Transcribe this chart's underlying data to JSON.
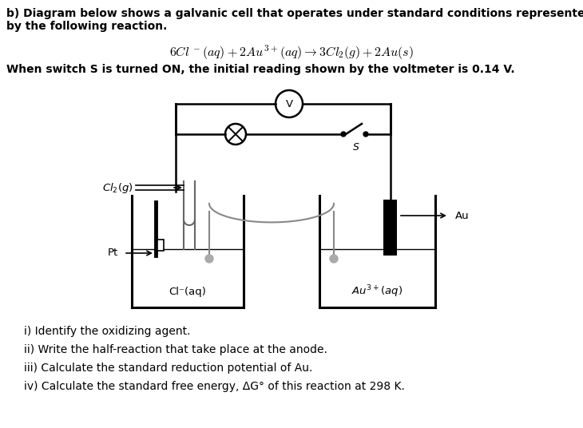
{
  "bg_color": "#ffffff",
  "text_color": "#000000",
  "title_line1": "b) Diagram below shows a galvanic cell that operates under standard conditions represented",
  "title_line2": "by the following reaction.",
  "switch_text": "When switch S is turned ON, the initial reading shown by the voltmeter is 0.14 V.",
  "q1": "i) Identify the oxidizing agent.",
  "q2": "ii) Write the half-reaction that take place at the anode.",
  "q3": "iii) Calculate the standard reduction potential of Au.",
  "q4": "iv) Calculate the standard free energy, ΔG° of this reaction at 298 K.",
  "cell_left_label": "Cl⁻(aq)",
  "cell_right_label": "Au³⁺(aq)",
  "cl2_label": "Cl₂(g)",
  "pt_label": "Pt",
  "au_label": "Au",
  "voltmeter_label": "V",
  "switch_label": "S",
  "wire_color": "#000000",
  "cell_color": "#000000",
  "tube_color": "#666666",
  "salt_bridge_color": "#888888"
}
